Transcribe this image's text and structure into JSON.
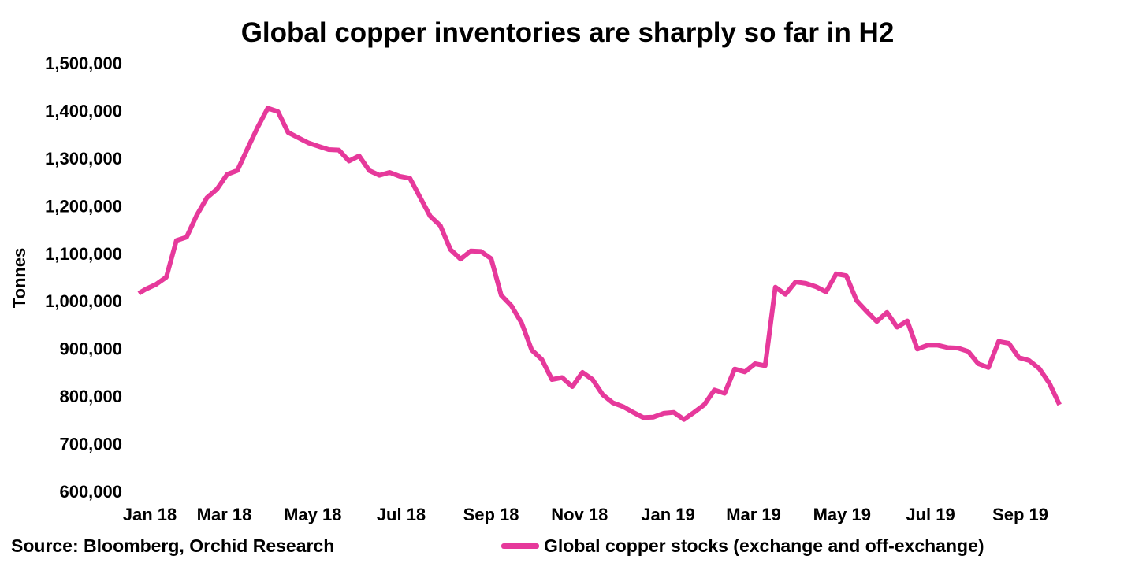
{
  "source": "Source: Bloomberg, Orchid Research",
  "chart_data": {
    "type": "line",
    "title": "Global copper inventories are sharply so far in H2",
    "xlabel": "",
    "ylabel": "Tonnes",
    "ylim": [
      600000,
      1500000
    ],
    "yticks": [
      600000,
      700000,
      800000,
      900000,
      1000000,
      1100000,
      1200000,
      1300000,
      1400000,
      1500000
    ],
    "ytick_labels": [
      "600,000",
      "700,000",
      "800,000",
      "900,000",
      "1,000,000",
      "1,100,000",
      "1,200,000",
      "1,300,000",
      "1,400,000",
      "1,500,000"
    ],
    "xlim": [
      "2018-01-01",
      "2019-10-12"
    ],
    "xtick_labels": [
      {
        "date": "2018-01-01",
        "label": "Jan 18"
      },
      {
        "date": "2018-03-01",
        "label": "Mar 18"
      },
      {
        "date": "2018-05-01",
        "label": "May 18"
      },
      {
        "date": "2018-07-01",
        "label": "Jul 18"
      },
      {
        "date": "2018-09-01",
        "label": "Sep 18"
      },
      {
        "date": "2018-11-01",
        "label": "Nov 18"
      },
      {
        "date": "2019-01-01",
        "label": "Jan 19"
      },
      {
        "date": "2019-03-01",
        "label": "Mar 19"
      },
      {
        "date": "2019-05-01",
        "label": "May 19"
      },
      {
        "date": "2019-07-01",
        "label": "Jul 19"
      },
      {
        "date": "2019-09-01",
        "label": "Sep 19"
      }
    ],
    "grid": false,
    "legend_position": "bottom",
    "series": [
      {
        "name": "Global copper stocks (exchange and off-exchange)",
        "color": "#e6399b",
        "points": [
          [
            "2018-01-01",
            1016000
          ],
          [
            "2018-01-06",
            1025000
          ],
          [
            "2018-01-13",
            1035000
          ],
          [
            "2018-01-20",
            1050000
          ],
          [
            "2018-01-27",
            1127000
          ],
          [
            "2018-02-03",
            1134000
          ],
          [
            "2018-02-10",
            1180000
          ],
          [
            "2018-02-17",
            1217000
          ],
          [
            "2018-02-24",
            1235000
          ],
          [
            "2018-03-03",
            1266000
          ],
          [
            "2018-03-10",
            1274000
          ],
          [
            "2018-03-17",
            1320000
          ],
          [
            "2018-03-24",
            1365000
          ],
          [
            "2018-03-31",
            1405000
          ],
          [
            "2018-04-07",
            1398000
          ],
          [
            "2018-04-14",
            1354000
          ],
          [
            "2018-04-21",
            1343000
          ],
          [
            "2018-04-28",
            1332000
          ],
          [
            "2018-05-05",
            1325000
          ],
          [
            "2018-05-12",
            1318000
          ],
          [
            "2018-05-19",
            1317000
          ],
          [
            "2018-05-26",
            1294000
          ],
          [
            "2018-06-02",
            1305000
          ],
          [
            "2018-06-09",
            1274000
          ],
          [
            "2018-06-16",
            1264000
          ],
          [
            "2018-06-23",
            1270000
          ],
          [
            "2018-06-30",
            1262000
          ],
          [
            "2018-07-07",
            1258000
          ],
          [
            "2018-07-14",
            1218000
          ],
          [
            "2018-07-21",
            1178000
          ],
          [
            "2018-07-28",
            1158000
          ],
          [
            "2018-08-04",
            1108000
          ],
          [
            "2018-08-11",
            1088000
          ],
          [
            "2018-08-18",
            1105000
          ],
          [
            "2018-08-25",
            1104000
          ],
          [
            "2018-09-01",
            1089000
          ],
          [
            "2018-09-08",
            1012000
          ],
          [
            "2018-09-15",
            990000
          ],
          [
            "2018-09-22",
            954000
          ],
          [
            "2018-09-29",
            897000
          ],
          [
            "2018-10-06",
            877000
          ],
          [
            "2018-10-13",
            835000
          ],
          [
            "2018-10-20",
            839000
          ],
          [
            "2018-10-27",
            820000
          ],
          [
            "2018-11-03",
            850000
          ],
          [
            "2018-11-10",
            835000
          ],
          [
            "2018-11-17",
            803000
          ],
          [
            "2018-11-24",
            786000
          ],
          [
            "2018-12-01",
            778000
          ],
          [
            "2018-12-08",
            766000
          ],
          [
            "2018-12-15",
            755000
          ],
          [
            "2018-12-22",
            756000
          ],
          [
            "2018-12-29",
            764000
          ],
          [
            "2019-01-05",
            766000
          ],
          [
            "2019-01-12",
            751000
          ],
          [
            "2019-01-19",
            766000
          ],
          [
            "2019-01-26",
            782000
          ],
          [
            "2019-02-02",
            813000
          ],
          [
            "2019-02-09",
            806000
          ],
          [
            "2019-02-16",
            857000
          ],
          [
            "2019-02-23",
            851000
          ],
          [
            "2019-03-02",
            868000
          ],
          [
            "2019-03-09",
            864000
          ],
          [
            "2019-03-16",
            1029000
          ],
          [
            "2019-03-23",
            1014000
          ],
          [
            "2019-03-30",
            1040000
          ],
          [
            "2019-04-06",
            1037000
          ],
          [
            "2019-04-13",
            1030000
          ],
          [
            "2019-04-20",
            1019000
          ],
          [
            "2019-04-27",
            1057000
          ],
          [
            "2019-05-04",
            1053000
          ],
          [
            "2019-05-11",
            1001000
          ],
          [
            "2019-05-18",
            978000
          ],
          [
            "2019-05-25",
            957000
          ],
          [
            "2019-06-01",
            976000
          ],
          [
            "2019-06-08",
            945000
          ],
          [
            "2019-06-15",
            958000
          ],
          [
            "2019-06-22",
            899000
          ],
          [
            "2019-06-29",
            907000
          ],
          [
            "2019-07-06",
            907000
          ],
          [
            "2019-07-13",
            902000
          ],
          [
            "2019-07-20",
            901000
          ],
          [
            "2019-07-27",
            894000
          ],
          [
            "2019-08-03",
            868000
          ],
          [
            "2019-08-10",
            860000
          ],
          [
            "2019-08-17",
            915000
          ],
          [
            "2019-08-24",
            911000
          ],
          [
            "2019-08-31",
            881000
          ],
          [
            "2019-09-07",
            875000
          ],
          [
            "2019-09-14",
            858000
          ],
          [
            "2019-09-21",
            827000
          ],
          [
            "2019-09-28",
            782000
          ]
        ]
      }
    ]
  }
}
